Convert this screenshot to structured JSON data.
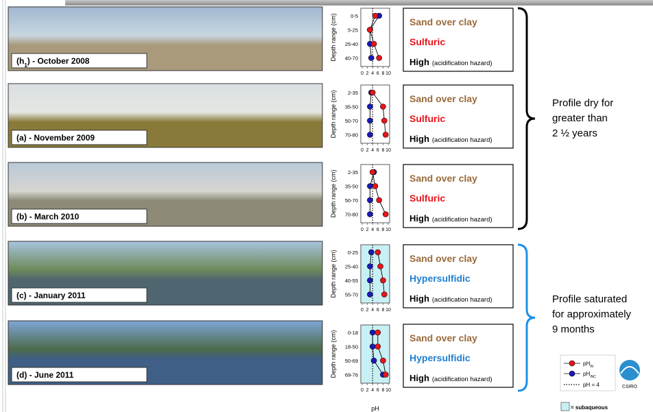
{
  "xlabel": "pH",
  "ref_ph": 4,
  "legend": {
    "series": [
      {
        "name": "pH",
        "sub": "W",
        "color": "#e8141b"
      },
      {
        "name": "pH",
        "sub": "INC",
        "color": "#1a1ab8"
      }
    ],
    "dotted": "pH = 4",
    "subaqueous": "= subaqueous",
    "subaqueous_color": "#c8f0f4"
  },
  "groups": [
    {
      "text": [
        "Profile dry for",
        "greater than",
        "2 ½ years"
      ],
      "color": "#000000"
    },
    {
      "text": [
        "Profile saturated",
        "for approximately",
        "9 months"
      ],
      "color": "#1e90e8"
    }
  ],
  "logo": "CSIRO",
  "panels": [
    {
      "caption": [
        "(h",
        "1",
        ") - October 2008"
      ],
      "chart": {
        "ylabel": "Depth range (cm)",
        "categories": [
          "0-5",
          "5-25",
          "25-40",
          "40-70"
        ],
        "series": [
          [
            5,
            3,
            4.5,
            6.5
          ],
          [
            6.5,
            3,
            3,
            3.5
          ]
        ],
        "xlim": [
          0,
          10
        ],
        "xticks": [
          0,
          2,
          4,
          6,
          8,
          10
        ],
        "subaqueous": false
      },
      "texture": "Sand over clay",
      "classification": "Sulfuric",
      "class_color": "#e8141b",
      "hazard": "High",
      "hazard_note": "(acidification hazard)"
    },
    {
      "caption": [
        "(a) - November 2009"
      ],
      "chart": {
        "ylabel": "Depth range (cm)",
        "categories": [
          "2-35",
          "35-50",
          "50-70",
          "70-80"
        ],
        "series": [
          [
            4,
            8,
            8.5,
            9
          ],
          [
            3.5,
            3,
            3,
            3
          ]
        ],
        "xlim": [
          0,
          10
        ],
        "xticks": [
          0,
          2,
          4,
          6,
          8,
          10
        ],
        "subaqueous": false
      },
      "texture": "Sand over clay",
      "classification": "Sulfuric",
      "class_color": "#e8141b",
      "hazard": "High",
      "hazard_note": "(acidification hazard)"
    },
    {
      "caption": [
        "(b) - March 2010"
      ],
      "chart": {
        "ylabel": "Depth range (cm)",
        "categories": [
          "2-35",
          "35-50",
          "50-70",
          "70-80"
        ],
        "series": [
          [
            4,
            5,
            6.5,
            9
          ],
          [
            4.5,
            3,
            3,
            3
          ]
        ],
        "xlim": [
          0,
          10
        ],
        "xticks": [
          0,
          2,
          4,
          6,
          8,
          10
        ],
        "subaqueous": false
      },
      "texture": "Sand over clay",
      "classification": "Sulfuric",
      "class_color": "#e8141b",
      "hazard": "High",
      "hazard_note": "(acidification hazard)"
    },
    {
      "caption": [
        "(c) - January 2011"
      ],
      "chart": {
        "ylabel": "Depth range (cm)",
        "categories": [
          "0-25",
          "25-40",
          "40-55",
          "55-70"
        ],
        "series": [
          [
            6,
            7,
            8,
            8.5
          ],
          [
            3.5,
            3,
            3,
            3
          ]
        ],
        "xlim": [
          0,
          10
        ],
        "xticks": [
          0,
          2,
          4,
          6,
          8,
          10
        ],
        "subaqueous": true
      },
      "texture": "Sand over clay",
      "classification": "Hypersulfidic",
      "class_color": "#1e7fd0",
      "hazard": "High",
      "hazard_note": "(acidification hazard)"
    },
    {
      "caption": [
        "(d) - June 2011"
      ],
      "chart": {
        "ylabel": "Depth range (cm)",
        "categories": [
          "0-18",
          "18-50",
          "50-69",
          "69-76"
        ],
        "series": [
          [
            6,
            6,
            8,
            9
          ],
          [
            4,
            4,
            4.5,
            8
          ]
        ],
        "xlim": [
          0,
          10
        ],
        "xticks": [
          0,
          2,
          4,
          6,
          8,
          10
        ],
        "subaqueous": true
      },
      "texture": "Sand over clay",
      "classification": "Hypersulfidic",
      "class_color": "#1e7fd0",
      "hazard": "High",
      "hazard_note": "(acidification hazard)"
    }
  ]
}
